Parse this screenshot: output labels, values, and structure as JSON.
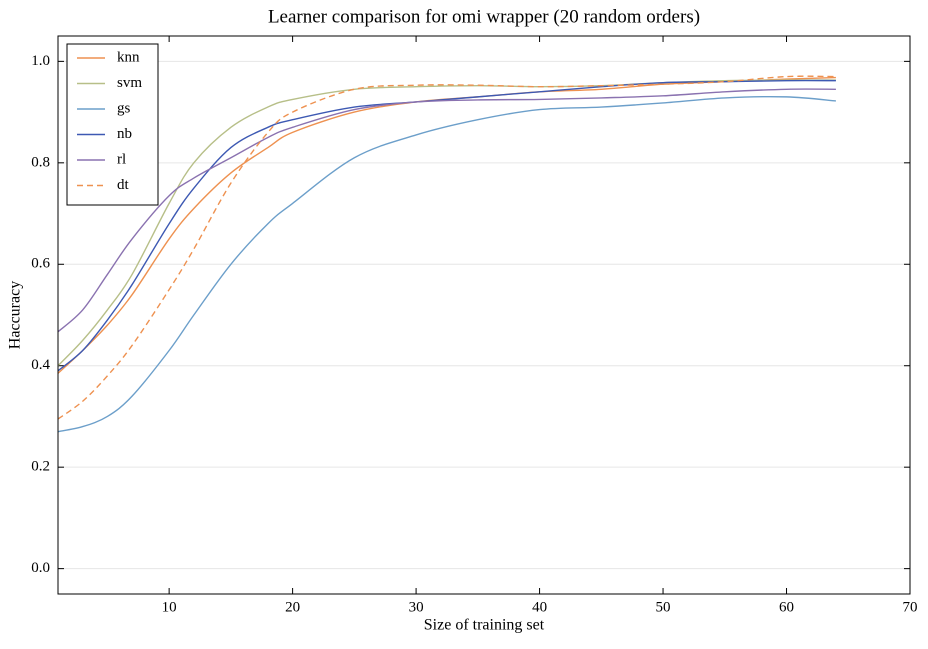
{
  "chart_data": {
    "type": "line",
    "title": "Learner comparison for omi wrapper (20 random orders)",
    "x_label": "Size of training set",
    "y_label": "Haccuracy",
    "x": [
      1,
      3,
      5,
      7,
      10,
      12,
      15,
      18,
      20,
      25,
      30,
      35,
      40,
      45,
      50,
      55,
      60,
      64
    ],
    "series": [
      {
        "name": "knn",
        "color": "#ee9150",
        "linestyle": "solid",
        "values": [
          0.385,
          0.43,
          0.48,
          0.54,
          0.65,
          0.71,
          0.78,
          0.83,
          0.86,
          0.9,
          0.92,
          0.93,
          0.94,
          0.945,
          0.955,
          0.96,
          0.965,
          0.968
        ]
      },
      {
        "name": "svm",
        "color": "#b7bf88",
        "linestyle": "solid",
        "values": [
          0.4,
          0.45,
          0.51,
          0.58,
          0.72,
          0.8,
          0.87,
          0.91,
          0.925,
          0.945,
          0.95,
          0.952,
          0.95,
          0.952,
          0.958,
          0.962,
          0.963,
          0.963
        ]
      },
      {
        "name": "gs",
        "color": "#6c9fca",
        "linestyle": "solid",
        "values": [
          0.27,
          0.28,
          0.3,
          0.34,
          0.43,
          0.5,
          0.6,
          0.68,
          0.72,
          0.81,
          0.855,
          0.885,
          0.905,
          0.91,
          0.918,
          0.928,
          0.93,
          0.922
        ]
      },
      {
        "name": "nb",
        "color": "#3d59b3",
        "linestyle": "solid",
        "values": [
          0.39,
          0.43,
          0.49,
          0.56,
          0.68,
          0.75,
          0.83,
          0.87,
          0.885,
          0.91,
          0.92,
          0.93,
          0.94,
          0.95,
          0.958,
          0.96,
          0.962,
          0.962
        ]
      },
      {
        "name": "rl",
        "color": "#8a72b0",
        "linestyle": "solid",
        "values": [
          0.467,
          0.51,
          0.58,
          0.65,
          0.735,
          0.77,
          0.81,
          0.85,
          0.87,
          0.905,
          0.92,
          0.924,
          0.925,
          0.928,
          0.932,
          0.94,
          0.945,
          0.945
        ]
      },
      {
        "name": "dt",
        "color": "#ee9150",
        "linestyle": "dashed",
        "values": [
          0.295,
          0.33,
          0.38,
          0.44,
          0.55,
          0.63,
          0.76,
          0.86,
          0.9,
          0.945,
          0.953,
          0.953,
          0.95,
          0.952,
          0.955,
          0.96,
          0.97,
          0.97
        ]
      }
    ],
    "xlim": [
      1,
      70
    ],
    "xticks": [
      10,
      20,
      30,
      40,
      50,
      60,
      70
    ],
    "ylim": [
      -0.05,
      1.05
    ],
    "yticks": [
      {
        "value": 0,
        "label": "0.0"
      },
      0.2,
      0.4,
      0.6,
      0.8,
      {
        "value": 1,
        "label": "1.0"
      }
    ],
    "grid": "y",
    "legend": "upper-left"
  }
}
